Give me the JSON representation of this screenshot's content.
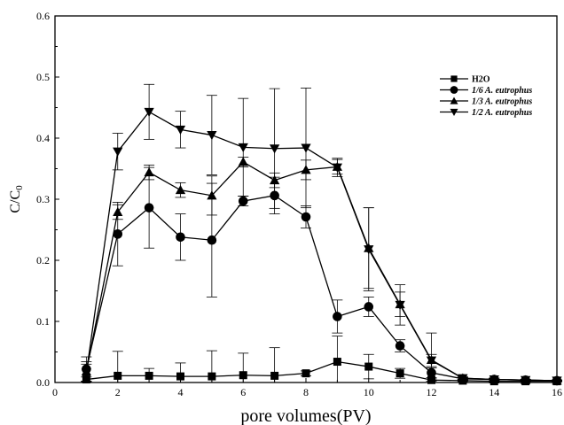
{
  "chart_data": {
    "type": "line",
    "xlabel": "pore volumes(PV)",
    "ylabel": "C/C",
    "ylabel_subscript": "0",
    "xlim": [
      0,
      16
    ],
    "ylim": [
      0,
      0.6
    ],
    "xticks": [
      "0",
      "2",
      "4",
      "6",
      "8",
      "10",
      "12",
      "14",
      "16"
    ],
    "yticks": [
      "0.0",
      "0.1",
      "0.2",
      "0.3",
      "0.4",
      "0.5",
      "0.6"
    ],
    "grid": false,
    "legend_position": "top-right",
    "series": [
      {
        "name": "H2O",
        "marker": "square",
        "italic": false,
        "x": [
          1,
          2,
          3,
          4,
          5,
          6,
          7,
          8,
          9,
          10,
          11,
          12,
          13,
          14,
          15,
          16
        ],
        "y": [
          0.005,
          0.011,
          0.011,
          0.01,
          0.01,
          0.012,
          0.011,
          0.015,
          0.034,
          0.026,
          0.015,
          0.004,
          0.003,
          0.002,
          0.002,
          0.002
        ],
        "err": [
          0.004,
          0.04,
          0.012,
          0.022,
          0.042,
          0.036,
          0.046,
          0.004,
          0.042,
          0.02,
          0.008,
          0.002,
          0.001,
          0.001,
          0.001,
          0.001
        ]
      },
      {
        "name": "1/6 A. eutrophus",
        "marker": "circle",
        "italic": true,
        "x": [
          1,
          2,
          3,
          4,
          5,
          6,
          7,
          8,
          9,
          10,
          11,
          12,
          13,
          14,
          15,
          16
        ],
        "y": [
          0.022,
          0.243,
          0.286,
          0.238,
          0.233,
          0.297,
          0.306,
          0.271,
          0.108,
          0.124,
          0.06,
          0.016,
          0.006,
          0.005,
          0.004,
          0.003
        ],
        "err": [
          0.02,
          0.052,
          0.066,
          0.038,
          0.093,
          0.008,
          0.03,
          0.018,
          0.027,
          0.016,
          0.01,
          0.008,
          0.002,
          0.002,
          0.001,
          0.001
        ]
      },
      {
        "name": "1/3 A. eutrophus",
        "marker": "triangle-up",
        "italic": true,
        "x": [
          1,
          2,
          3,
          4,
          5,
          6,
          7,
          8,
          9,
          10,
          11,
          12,
          13,
          14,
          15,
          16
        ],
        "y": [
          0.018,
          0.279,
          0.344,
          0.315,
          0.306,
          0.361,
          0.331,
          0.348,
          0.353,
          0.22,
          0.128,
          0.037,
          0.007,
          0.005,
          0.004,
          0.003
        ],
        "err": [
          0.016,
          0.012,
          0.012,
          0.012,
          0.032,
          0.008,
          0.012,
          0.016,
          0.012,
          0.066,
          0.02,
          0.044,
          0.002,
          0.002,
          0.001,
          0.001
        ]
      },
      {
        "name": "1/2 A. eutrophus",
        "marker": "triangle-down",
        "italic": true,
        "x": [
          1,
          2,
          3,
          4,
          5,
          6,
          7,
          8,
          9,
          10,
          11,
          12,
          13,
          14,
          15,
          16
        ],
        "y": [
          0.016,
          0.378,
          0.443,
          0.414,
          0.405,
          0.385,
          0.383,
          0.384,
          0.352,
          0.218,
          0.127,
          0.036,
          0.007,
          0.005,
          0.004,
          0.003
        ],
        "err": [
          0.014,
          0.03,
          0.045,
          0.03,
          0.065,
          0.08,
          0.098,
          0.098,
          0.015,
          0.068,
          0.033,
          0.01,
          0.002,
          0.002,
          0.001,
          0.001
        ]
      }
    ]
  }
}
